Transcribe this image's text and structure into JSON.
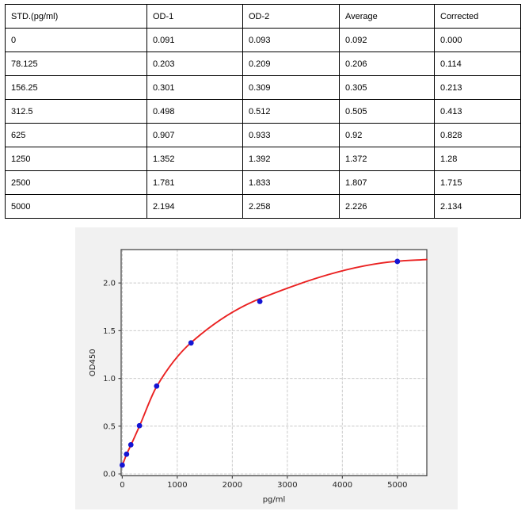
{
  "table": {
    "headers": [
      "STD.(pg/ml)",
      "OD-1",
      "OD-2",
      "Average",
      "Corrected"
    ],
    "rows": [
      [
        "0",
        "0.091",
        "0.093",
        "0.092",
        "0.000"
      ],
      [
        "78.125",
        "0.203",
        "0.209",
        "0.206",
        "0.114"
      ],
      [
        "156.25",
        "0.301",
        "0.309",
        "0.305",
        "0.213"
      ],
      [
        "312.5",
        "0.498",
        "0.512",
        "0.505",
        "0.413"
      ],
      [
        "625",
        "0.907",
        "0.933",
        "0.92",
        "0.828"
      ],
      [
        "1250",
        "1.352",
        "1.392",
        "1.372",
        "1.28"
      ],
      [
        "2500",
        "1.781",
        "1.833",
        "1.807",
        "1.715"
      ],
      [
        "5000",
        "2.194",
        "2.258",
        "2.226",
        "2.134"
      ]
    ]
  },
  "chart_data": {
    "type": "scatter",
    "title": "",
    "xlabel": "pg/ml",
    "ylabel": "OD450",
    "x": [
      0,
      78.125,
      156.25,
      312.5,
      625,
      1250,
      2500,
      5000
    ],
    "y": [
      0.092,
      0.206,
      0.305,
      0.505,
      0.92,
      1.372,
      1.807,
      2.226
    ],
    "fit_curve": {
      "x": [
        -20,
        0,
        78.125,
        156.25,
        312.5,
        625,
        1250,
        2500,
        5000,
        5535
      ],
      "y": [
        0.092,
        0.1,
        0.205,
        0.3,
        0.5,
        0.915,
        1.375,
        1.835,
        2.228,
        2.246
      ]
    },
    "xlim": [
      -20,
      5535
    ],
    "ylim": [
      -0.02,
      2.35
    ],
    "xticks": [
      0,
      1000,
      2000,
      3000,
      4000,
      5000
    ],
    "xtick_labels": [
      "0",
      "1000",
      "2000",
      "3000",
      "4000",
      "5000"
    ],
    "yticks": [
      0,
      0.5,
      1,
      1.5,
      2
    ],
    "ytick_labels": [
      "0.0",
      "0.5",
      "1.0",
      "1.5",
      "2.0"
    ],
    "grid": {
      "show": true,
      "style": "dashed"
    },
    "colors": {
      "point": "#1515d3",
      "curve": "#ea2121",
      "grid": "#cbcbcb",
      "spine": "#4a4a4a",
      "panel_bg": "#f1f1f1",
      "plot_bg": "#ffffff"
    }
  }
}
